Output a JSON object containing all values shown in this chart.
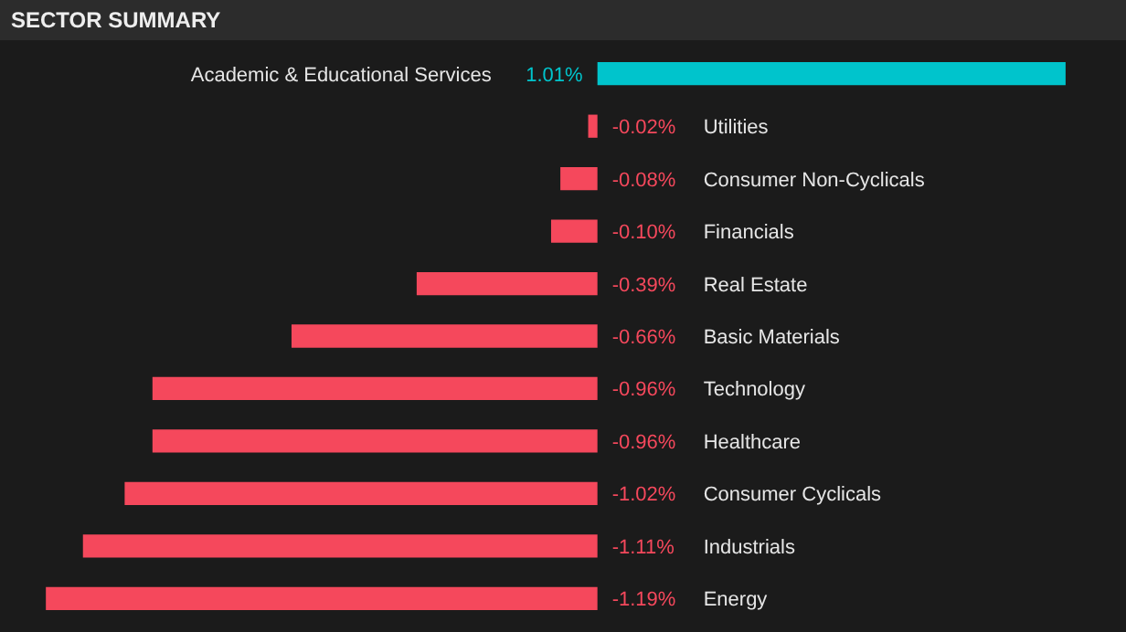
{
  "chart_data": {
    "type": "bar",
    "orientation": "horizontal",
    "title": "SECTOR SUMMARY",
    "categories": [
      "Academic & Educational Services",
      "Utilities",
      "Consumer Non-Cyclicals",
      "Financials",
      "Real Estate",
      "Basic Materials",
      "Technology",
      "Healthcare",
      "Consumer Cyclicals",
      "Industrials",
      "Energy"
    ],
    "values": [
      1.01,
      -0.02,
      -0.08,
      -0.1,
      -0.39,
      -0.66,
      -0.96,
      -0.96,
      -1.02,
      -1.11,
      -1.19
    ],
    "value_labels": [
      "1.01%",
      "-0.02%",
      "-0.08%",
      "-0.10%",
      "-0.39%",
      "-0.66%",
      "-0.96%",
      "-0.96%",
      "-1.02%",
      "-1.11%",
      "-1.19%"
    ],
    "colors": [
      "#00c4cc",
      "#f5485c",
      "#f5485c",
      "#f5485c",
      "#f5485c",
      "#f5485c",
      "#f5485c",
      "#f5485c",
      "#f5485c",
      "#f5485c",
      "#f5485c"
    ],
    "tick_labels": false
  }
}
